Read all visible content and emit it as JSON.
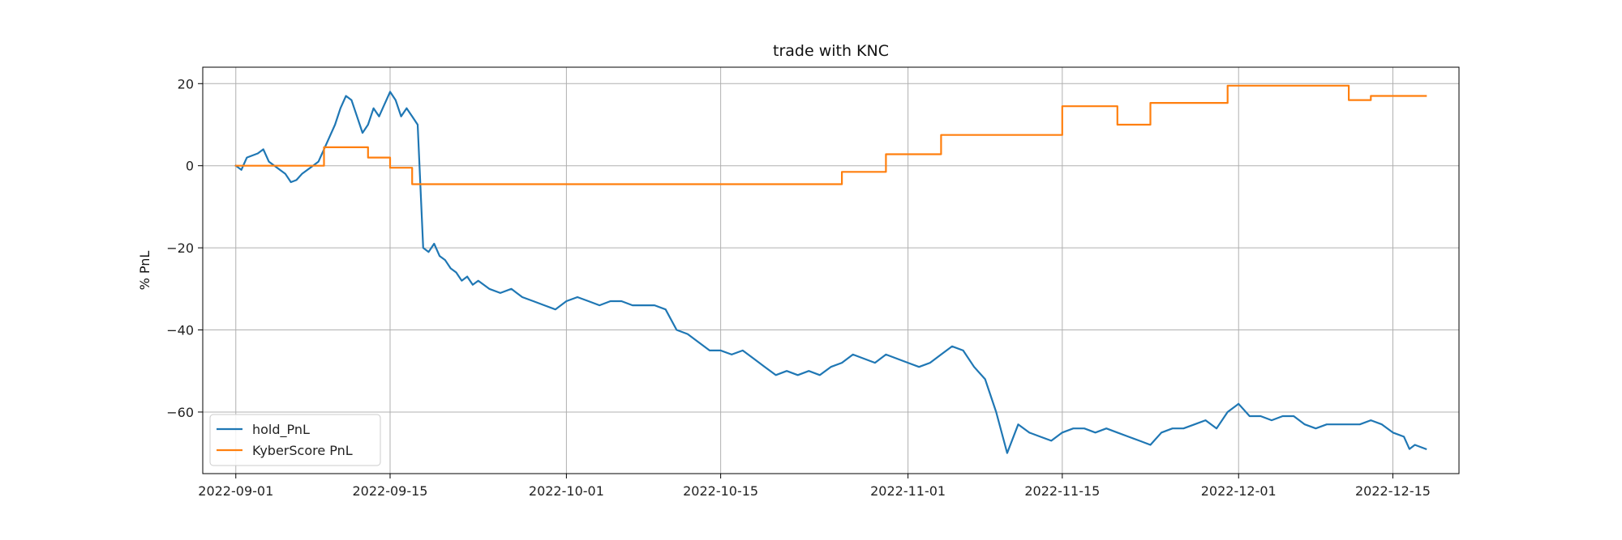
{
  "chart_data": {
    "type": "line",
    "title": "trade with KNC",
    "xlabel": "",
    "ylabel": "% PnL",
    "x_range": [
      "2022-08-29",
      "2022-12-21"
    ],
    "ylim": [
      -75,
      24
    ],
    "x_ticks": [
      "2022-09-01",
      "2022-09-15",
      "2022-10-01",
      "2022-10-15",
      "2022-11-01",
      "2022-11-15",
      "2022-12-01",
      "2022-12-15"
    ],
    "y_ticks": [
      20,
      0,
      -20,
      -40,
      -60
    ],
    "grid": true,
    "legend_position": "lower-left",
    "series": [
      {
        "name": "hold_PnL",
        "color": "#1f77b4",
        "points": [
          [
            "2022-09-01",
            0
          ],
          [
            "2022-09-01T12",
            -1
          ],
          [
            "2022-09-02",
            2
          ],
          [
            "2022-09-03",
            3
          ],
          [
            "2022-09-03T12",
            4
          ],
          [
            "2022-09-04",
            1
          ],
          [
            "2022-09-05",
            -1
          ],
          [
            "2022-09-05T12",
            -2
          ],
          [
            "2022-09-06",
            -4
          ],
          [
            "2022-09-06T12",
            -3.5
          ],
          [
            "2022-09-07",
            -2
          ],
          [
            "2022-09-07T12",
            -1
          ],
          [
            "2022-09-08",
            0
          ],
          [
            "2022-09-08T12",
            1
          ],
          [
            "2022-09-09",
            4
          ],
          [
            "2022-09-09T12",
            7
          ],
          [
            "2022-09-10",
            10
          ],
          [
            "2022-09-10T12",
            14
          ],
          [
            "2022-09-11",
            17
          ],
          [
            "2022-09-11T12",
            16
          ],
          [
            "2022-09-12",
            12
          ],
          [
            "2022-09-12T12",
            8
          ],
          [
            "2022-09-13",
            10
          ],
          [
            "2022-09-13T12",
            14
          ],
          [
            "2022-09-14",
            12
          ],
          [
            "2022-09-14T12",
            15
          ],
          [
            "2022-09-15",
            18
          ],
          [
            "2022-09-15T12",
            16
          ],
          [
            "2022-09-16",
            12
          ],
          [
            "2022-09-16T12",
            14
          ],
          [
            "2022-09-17",
            12
          ],
          [
            "2022-09-17T12",
            10
          ],
          [
            "2022-09-18",
            -20
          ],
          [
            "2022-09-18T12",
            -21
          ],
          [
            "2022-09-19",
            -19
          ],
          [
            "2022-09-19T12",
            -22
          ],
          [
            "2022-09-20",
            -23
          ],
          [
            "2022-09-20T12",
            -25
          ],
          [
            "2022-09-21",
            -26
          ],
          [
            "2022-09-21T12",
            -28
          ],
          [
            "2022-09-22",
            -27
          ],
          [
            "2022-09-22T12",
            -29
          ],
          [
            "2022-09-23",
            -28
          ],
          [
            "2022-09-24",
            -30
          ],
          [
            "2022-09-25",
            -31
          ],
          [
            "2022-09-26",
            -30
          ],
          [
            "2022-09-27",
            -32
          ],
          [
            "2022-09-28",
            -33
          ],
          [
            "2022-09-29",
            -34
          ],
          [
            "2022-09-30",
            -35
          ],
          [
            "2022-10-01",
            -33
          ],
          [
            "2022-10-02",
            -32
          ],
          [
            "2022-10-03",
            -33
          ],
          [
            "2022-10-04",
            -34
          ],
          [
            "2022-10-05",
            -33
          ],
          [
            "2022-10-06",
            -33
          ],
          [
            "2022-10-07",
            -34
          ],
          [
            "2022-10-08",
            -34
          ],
          [
            "2022-10-09",
            -34
          ],
          [
            "2022-10-10",
            -35
          ],
          [
            "2022-10-11",
            -40
          ],
          [
            "2022-10-12",
            -41
          ],
          [
            "2022-10-13",
            -43
          ],
          [
            "2022-10-14",
            -45
          ],
          [
            "2022-10-15",
            -45
          ],
          [
            "2022-10-16",
            -46
          ],
          [
            "2022-10-17",
            -45
          ],
          [
            "2022-10-18",
            -47
          ],
          [
            "2022-10-19",
            -49
          ],
          [
            "2022-10-20",
            -51
          ],
          [
            "2022-10-21",
            -50
          ],
          [
            "2022-10-22",
            -51
          ],
          [
            "2022-10-23",
            -50
          ],
          [
            "2022-10-24",
            -51
          ],
          [
            "2022-10-25",
            -49
          ],
          [
            "2022-10-26",
            -48
          ],
          [
            "2022-10-27",
            -46
          ],
          [
            "2022-10-28",
            -47
          ],
          [
            "2022-10-29",
            -48
          ],
          [
            "2022-10-30",
            -46
          ],
          [
            "2022-10-31",
            -47
          ],
          [
            "2022-11-01",
            -48
          ],
          [
            "2022-11-02",
            -49
          ],
          [
            "2022-11-03",
            -48
          ],
          [
            "2022-11-04",
            -46
          ],
          [
            "2022-11-05",
            -44
          ],
          [
            "2022-11-06",
            -45
          ],
          [
            "2022-11-07",
            -49
          ],
          [
            "2022-11-08",
            -52
          ],
          [
            "2022-11-09",
            -60
          ],
          [
            "2022-11-10",
            -70
          ],
          [
            "2022-11-11",
            -63
          ],
          [
            "2022-11-12",
            -65
          ],
          [
            "2022-11-13",
            -66
          ],
          [
            "2022-11-14",
            -67
          ],
          [
            "2022-11-15",
            -65
          ],
          [
            "2022-11-16",
            -64
          ],
          [
            "2022-11-17",
            -64
          ],
          [
            "2022-11-18",
            -65
          ],
          [
            "2022-11-19",
            -64
          ],
          [
            "2022-11-20",
            -65
          ],
          [
            "2022-11-21",
            -66
          ],
          [
            "2022-11-22",
            -67
          ],
          [
            "2022-11-23",
            -68
          ],
          [
            "2022-11-24",
            -65
          ],
          [
            "2022-11-25",
            -64
          ],
          [
            "2022-11-26",
            -64
          ],
          [
            "2022-11-27",
            -63
          ],
          [
            "2022-11-28",
            -62
          ],
          [
            "2022-11-29",
            -64
          ],
          [
            "2022-11-30",
            -60
          ],
          [
            "2022-12-01",
            -58
          ],
          [
            "2022-12-02",
            -61
          ],
          [
            "2022-12-03",
            -61
          ],
          [
            "2022-12-04",
            -62
          ],
          [
            "2022-12-05",
            -61
          ],
          [
            "2022-12-06",
            -61
          ],
          [
            "2022-12-07",
            -63
          ],
          [
            "2022-12-08",
            -64
          ],
          [
            "2022-12-09",
            -63
          ],
          [
            "2022-12-10",
            -63
          ],
          [
            "2022-12-11",
            -63
          ],
          [
            "2022-12-12",
            -63
          ],
          [
            "2022-12-13",
            -62
          ],
          [
            "2022-12-14",
            -63
          ],
          [
            "2022-12-15",
            -65
          ],
          [
            "2022-12-16",
            -66
          ],
          [
            "2022-12-16T12",
            -69
          ],
          [
            "2022-12-17",
            -68
          ],
          [
            "2022-12-18",
            -69
          ]
        ]
      },
      {
        "name": "KyberScore PnL",
        "color": "#ff7f0e",
        "step": true,
        "points": [
          [
            "2022-09-01",
            0
          ],
          [
            "2022-09-09",
            0
          ],
          [
            "2022-09-09",
            4.5
          ],
          [
            "2022-09-13",
            4.5
          ],
          [
            "2022-09-13",
            2
          ],
          [
            "2022-09-15",
            2
          ],
          [
            "2022-09-15",
            -0.5
          ],
          [
            "2022-09-17",
            -0.5
          ],
          [
            "2022-09-17",
            -4.5
          ],
          [
            "2022-10-26",
            -4.5
          ],
          [
            "2022-10-26",
            -1.5
          ],
          [
            "2022-10-30",
            -1.5
          ],
          [
            "2022-10-30",
            2.8
          ],
          [
            "2022-11-04",
            2.8
          ],
          [
            "2022-11-04",
            7.5
          ],
          [
            "2022-11-15",
            7.5
          ],
          [
            "2022-11-15",
            14.5
          ],
          [
            "2022-11-20",
            14.5
          ],
          [
            "2022-11-20",
            10
          ],
          [
            "2022-11-23",
            10
          ],
          [
            "2022-11-23",
            15.3
          ],
          [
            "2022-11-30",
            15.3
          ],
          [
            "2022-11-30",
            19.5
          ],
          [
            "2022-12-11",
            19.5
          ],
          [
            "2022-12-11",
            16
          ],
          [
            "2022-12-13",
            16
          ],
          [
            "2022-12-13",
            17
          ],
          [
            "2022-12-18",
            17
          ]
        ]
      }
    ]
  }
}
